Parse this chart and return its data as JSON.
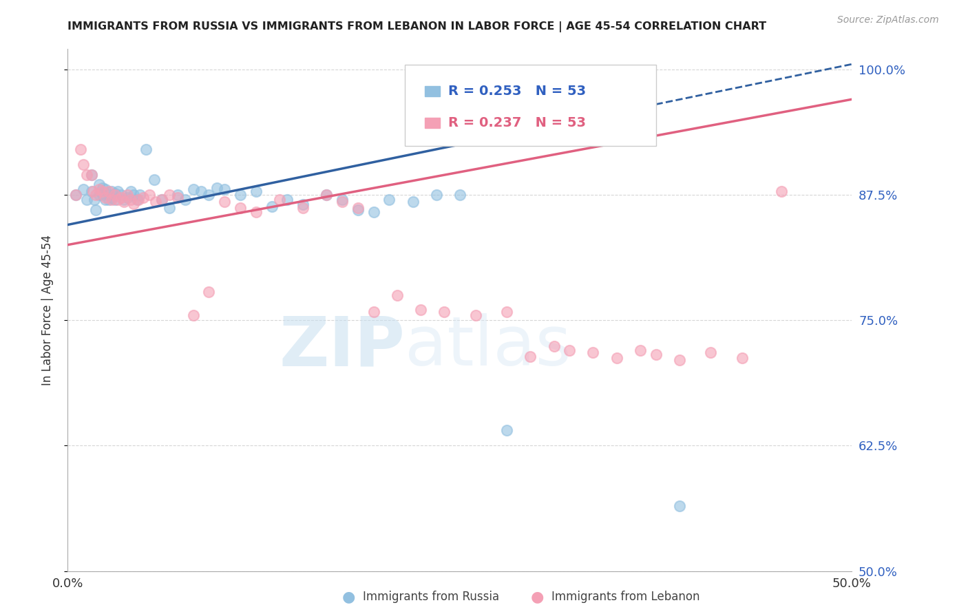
{
  "title": "IMMIGRANTS FROM RUSSIA VS IMMIGRANTS FROM LEBANON IN LABOR FORCE | AGE 45-54 CORRELATION CHART",
  "source": "Source: ZipAtlas.com",
  "ylabel": "In Labor Force | Age 45-54",
  "R_russia": 0.253,
  "N_russia": 53,
  "R_lebanon": 0.237,
  "N_lebanon": 53,
  "xlim": [
    0.0,
    0.5
  ],
  "ylim": [
    0.5,
    1.02
  ],
  "xtick_positions": [
    0.0,
    0.1,
    0.2,
    0.3,
    0.4,
    0.5
  ],
  "xtick_labels": [
    "0.0%",
    "",
    "",
    "",
    "",
    "50.0%"
  ],
  "ytick_positions": [
    0.5,
    0.625,
    0.75,
    0.875,
    1.0
  ],
  "ytick_labels": [
    "50.0%",
    "62.5%",
    "75.0%",
    "87.5%",
    "100.0%"
  ],
  "color_russia": "#92C0E0",
  "color_lebanon": "#F4A0B5",
  "color_russia_line": "#3060A0",
  "color_lebanon_line": "#E06080",
  "legend_label_russia": "Immigrants from Russia",
  "legend_label_lebanon": "Immigrants from Lebanon",
  "russia_x": [
    0.005,
    0.01,
    0.012,
    0.015,
    0.015,
    0.017,
    0.018,
    0.02,
    0.02,
    0.022,
    0.022,
    0.024,
    0.024,
    0.026,
    0.026,
    0.028,
    0.028,
    0.03,
    0.03,
    0.032,
    0.034,
    0.036,
    0.038,
    0.04,
    0.042,
    0.044,
    0.046,
    0.05,
    0.055,
    0.06,
    0.065,
    0.07,
    0.075,
    0.08,
    0.085,
    0.09,
    0.095,
    0.1,
    0.11,
    0.12,
    0.13,
    0.14,
    0.15,
    0.165,
    0.175,
    0.185,
    0.195,
    0.205,
    0.22,
    0.235,
    0.25,
    0.28,
    0.39
  ],
  "russia_y": [
    0.875,
    0.88,
    0.87,
    0.878,
    0.895,
    0.87,
    0.86,
    0.885,
    0.875,
    0.882,
    0.875,
    0.87,
    0.88,
    0.875,
    0.87,
    0.878,
    0.872,
    0.876,
    0.87,
    0.878,
    0.875,
    0.87,
    0.872,
    0.878,
    0.875,
    0.87,
    0.875,
    0.92,
    0.89,
    0.87,
    0.862,
    0.875,
    0.87,
    0.88,
    0.878,
    0.875,
    0.882,
    0.88,
    0.875,
    0.878,
    0.863,
    0.87,
    0.865,
    0.875,
    0.87,
    0.86,
    0.858,
    0.87,
    0.868,
    0.875,
    0.875,
    0.64,
    0.565
  ],
  "lebanon_x": [
    0.005,
    0.008,
    0.01,
    0.012,
    0.015,
    0.016,
    0.018,
    0.02,
    0.022,
    0.024,
    0.026,
    0.028,
    0.03,
    0.032,
    0.034,
    0.036,
    0.038,
    0.04,
    0.042,
    0.045,
    0.048,
    0.052,
    0.056,
    0.06,
    0.065,
    0.07,
    0.08,
    0.09,
    0.1,
    0.11,
    0.12,
    0.135,
    0.15,
    0.165,
    0.175,
    0.185,
    0.195,
    0.21,
    0.225,
    0.24,
    0.26,
    0.28,
    0.295,
    0.31,
    0.32,
    0.335,
    0.35,
    0.365,
    0.375,
    0.39,
    0.41,
    0.43,
    0.455
  ],
  "lebanon_y": [
    0.875,
    0.92,
    0.905,
    0.895,
    0.895,
    0.878,
    0.875,
    0.88,
    0.878,
    0.872,
    0.878,
    0.87,
    0.875,
    0.87,
    0.872,
    0.868,
    0.875,
    0.87,
    0.866,
    0.87,
    0.872,
    0.875,
    0.868,
    0.87,
    0.875,
    0.872,
    0.755,
    0.778,
    0.868,
    0.862,
    0.858,
    0.87,
    0.862,
    0.875,
    0.868,
    0.862,
    0.758,
    0.775,
    0.76,
    0.758,
    0.755,
    0.758,
    0.714,
    0.724,
    0.72,
    0.718,
    0.712,
    0.72,
    0.716,
    0.71,
    0.718,
    0.712,
    0.878
  ],
  "watermark_zip": "ZIP",
  "watermark_atlas": "atlas",
  "background_color": "#ffffff",
  "grid_color": "#cccccc"
}
